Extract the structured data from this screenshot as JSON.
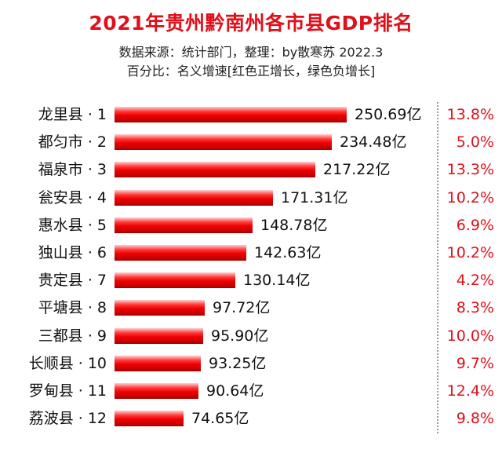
{
  "header": {
    "title": "2021年贵州黔南州各市县GDP排名",
    "source_line": "数据来源：统计部门，整理：by散寒苏 2022.3",
    "note_line": "百分比：名义增速[红色正增长，绿色负增长]"
  },
  "colors": {
    "title": "#e0101a",
    "bar": "#ee0000",
    "positive_growth": "#e0101a",
    "negative_growth": "#2a9d2a"
  },
  "chart_data": {
    "type": "bar",
    "orientation": "horizontal",
    "title": "2021年贵州黔南州各市县GDP排名",
    "categories": [
      "龙里县 · 1",
      "都匀市 · 2",
      "福泉市 · 3",
      "瓮安县 · 4",
      "惠水县 · 5",
      "独山县 · 6",
      "贵定县 · 7",
      "平塘县 · 8",
      "三都县 · 9",
      "长顺县 · 10",
      "罗甸县 · 11",
      "荔波县 · 12"
    ],
    "values": [
      250.69,
      234.48,
      217.22,
      171.31,
      148.78,
      142.63,
      130.14,
      97.72,
      95.9,
      93.25,
      90.64,
      74.65
    ],
    "value_labels": [
      "250.69亿",
      "234.48亿",
      "217.22亿",
      "171.31亿",
      "148.78亿",
      "142.63亿",
      "130.14亿",
      "97.72亿",
      "95.90亿",
      "93.25亿",
      "90.64亿",
      "74.65亿"
    ],
    "growth_labels": [
      "13.8%",
      "5.0%",
      "13.3%",
      "10.2%",
      "6.9%",
      "10.2%",
      "4.2%",
      "8.3%",
      "10.0%",
      "9.7%",
      "12.4%",
      "9.8%"
    ],
    "growth": [
      13.8,
      5.0,
      13.3,
      10.2,
      6.9,
      10.2,
      4.2,
      8.3,
      10.0,
      9.7,
      12.4,
      9.8
    ],
    "xlim": [
      0,
      250.69
    ],
    "grid": false
  }
}
